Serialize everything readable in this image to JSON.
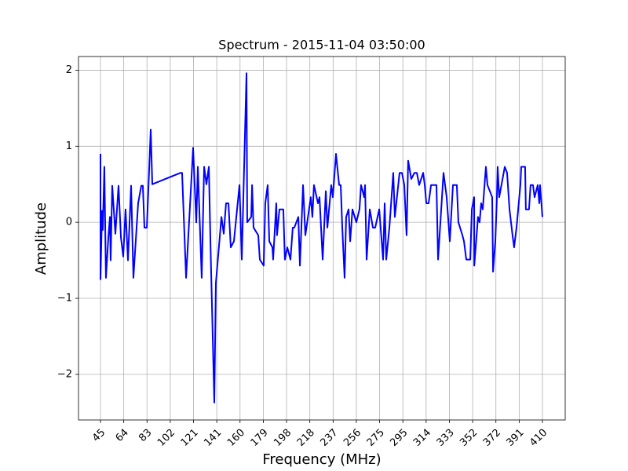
{
  "chart_data": {
    "type": "line",
    "title": "Spectrum - 2015-11-04 03:50:00",
    "xlabel": "Frequency (MHz)",
    "ylabel": "Amplitude",
    "grid": true,
    "xlim": [
      26.85,
      428.8
    ],
    "ylim": [
      -2.6,
      2.18
    ],
    "xticks": [
      {
        "value": 45,
        "label": "45"
      },
      {
        "value": 64.21,
        "label": "64"
      },
      {
        "value": 83.42,
        "label": "83"
      },
      {
        "value": 102.63,
        "label": "102"
      },
      {
        "value": 121.84,
        "label": "121"
      },
      {
        "value": 141.05,
        "label": "141"
      },
      {
        "value": 160.26,
        "label": "160"
      },
      {
        "value": 179.47,
        "label": "179"
      },
      {
        "value": 198.68,
        "label": "198"
      },
      {
        "value": 217.89,
        "label": "218"
      },
      {
        "value": 237.11,
        "label": "237"
      },
      {
        "value": 256.32,
        "label": "256"
      },
      {
        "value": 275.53,
        "label": "275"
      },
      {
        "value": 294.74,
        "label": "295"
      },
      {
        "value": 313.95,
        "label": "314"
      },
      {
        "value": 333.16,
        "label": "333"
      },
      {
        "value": 352.37,
        "label": "352"
      },
      {
        "value": 371.58,
        "label": "372"
      },
      {
        "value": 390.79,
        "label": "391"
      },
      {
        "value": 410,
        "label": "410"
      }
    ],
    "yticks": [
      {
        "value": -2,
        "label": "−2"
      },
      {
        "value": -1,
        "label": "−1"
      },
      0,
      1,
      2
    ],
    "series": [
      {
        "color": "#0000ff",
        "x": [
          45.0,
          45.0,
          46.3,
          46.9,
          48.2,
          49.5,
          51.5,
          52.8,
          53.4,
          54.7,
          57.3,
          59.9,
          61.9,
          63.8,
          65.7,
          67.7,
          70.3,
          72.2,
          76.1,
          78.7,
          80.0,
          81.3,
          83.3,
          86.5,
          87.8,
          111.1,
          112.4,
          115.7,
          121.5,
          124.1,
          125.4,
          128.6,
          130.6,
          132.5,
          134.5,
          135.8,
          139.0,
          140.3,
          144.9,
          146.8,
          148.7,
          150.7,
          152.6,
          155.2,
          159.8,
          161.7,
          165.6,
          166.2,
          169.5,
          170.2,
          171.4,
          175.3,
          176.6,
          179.8,
          181.1,
          183.1,
          184.4,
          187.0,
          187.6,
          190.2,
          190.8,
          192.8,
          196.0,
          197.3,
          199.3,
          201.9,
          203.8,
          205.1,
          208.4,
          209.7,
          212.3,
          214.2,
          218.7,
          220.0,
          221.3,
          224.6,
          225.9,
          228.5,
          231.1,
          232.4,
          235.6,
          236.9,
          239.5,
          242.1,
          243.4,
          244.7,
          246.6,
          247.9,
          249.9,
          251.2,
          253.1,
          256.3,
          258.9,
          260.2,
          262.8,
          263.5,
          264.8,
          267.4,
          270.0,
          271.9,
          275.2,
          278.4,
          279.7,
          281.0,
          283.6,
          286.8,
          288.1,
          292.0,
          294.0,
          295.9,
          297.8,
          299.1,
          301.7,
          304.3,
          306.3,
          308.2,
          311.5,
          312.8,
          314.1,
          316.0,
          318.0,
          322.5,
          323.8,
          328.3,
          330.9,
          333.5,
          336.1,
          339.3,
          340.6,
          343.9,
          345.2,
          347.1,
          350.4,
          351.7,
          353.6,
          353.7,
          356.8,
          358.1,
          359.4,
          360.7,
          363.3,
          364.6,
          368.5,
          369.2,
          371.1,
          372.4,
          373.0,
          374.3,
          378.9,
          380.8,
          382.8,
          385.3,
          386.6,
          388.6,
          391.8,
          392.5,
          395.7,
          396.3,
          398.9,
          400.2,
          402.2,
          403.5,
          406.1,
          407.4,
          408.0,
          410.0
        ],
        "values": [
          0.9,
          -0.75,
          0.15,
          -0.1,
          0.73,
          -0.73,
          -0.2,
          0.07,
          -0.5,
          0.48,
          -0.15,
          0.48,
          -0.2,
          -0.45,
          0.17,
          -0.5,
          0.48,
          -0.73,
          0.25,
          0.48,
          0.48,
          -0.07,
          -0.07,
          1.22,
          0.5,
          0.65,
          0.65,
          -0.73,
          0.98,
          0.0,
          0.73,
          -0.73,
          0.73,
          0.5,
          0.73,
          -0.25,
          -2.37,
          -0.8,
          0.07,
          -0.15,
          0.25,
          0.25,
          -0.33,
          -0.25,
          0.49,
          -0.49,
          1.96,
          0.0,
          0.07,
          0.49,
          -0.07,
          -0.17,
          -0.49,
          -0.57,
          0.25,
          0.49,
          -0.25,
          -0.33,
          -0.49,
          0.25,
          -0.17,
          0.17,
          0.17,
          -0.49,
          -0.33,
          -0.49,
          -0.07,
          -0.07,
          0.07,
          -0.57,
          0.49,
          -0.17,
          0.33,
          0.07,
          0.49,
          0.25,
          0.33,
          -0.49,
          0.41,
          -0.07,
          0.49,
          0.33,
          0.9,
          0.49,
          0.49,
          -0.07,
          -0.73,
          0.07,
          0.17,
          -0.25,
          0.17,
          0.0,
          0.17,
          0.49,
          0.33,
          0.49,
          -0.49,
          0.17,
          -0.07,
          -0.07,
          0.17,
          -0.49,
          0.25,
          -0.49,
          -0.07,
          0.65,
          0.07,
          0.65,
          0.65,
          0.49,
          -0.17,
          0.81,
          0.57,
          0.65,
          0.65,
          0.49,
          0.65,
          0.49,
          0.25,
          0.25,
          0.49,
          0.49,
          -0.49,
          0.65,
          0.33,
          -0.25,
          0.49,
          0.49,
          0.0,
          -0.17,
          -0.25,
          -0.49,
          -0.49,
          0.17,
          0.33,
          -0.57,
          0.07,
          0.0,
          0.25,
          0.17,
          0.73,
          0.49,
          0.33,
          -0.65,
          -0.25,
          0.33,
          0.73,
          0.33,
          0.73,
          0.65,
          0.17,
          -0.17,
          -0.33,
          -0.07,
          0.49,
          0.73,
          0.73,
          0.17,
          0.17,
          0.49,
          0.49,
          0.33,
          0.49,
          0.25,
          0.49,
          0.07
        ]
      }
    ]
  }
}
